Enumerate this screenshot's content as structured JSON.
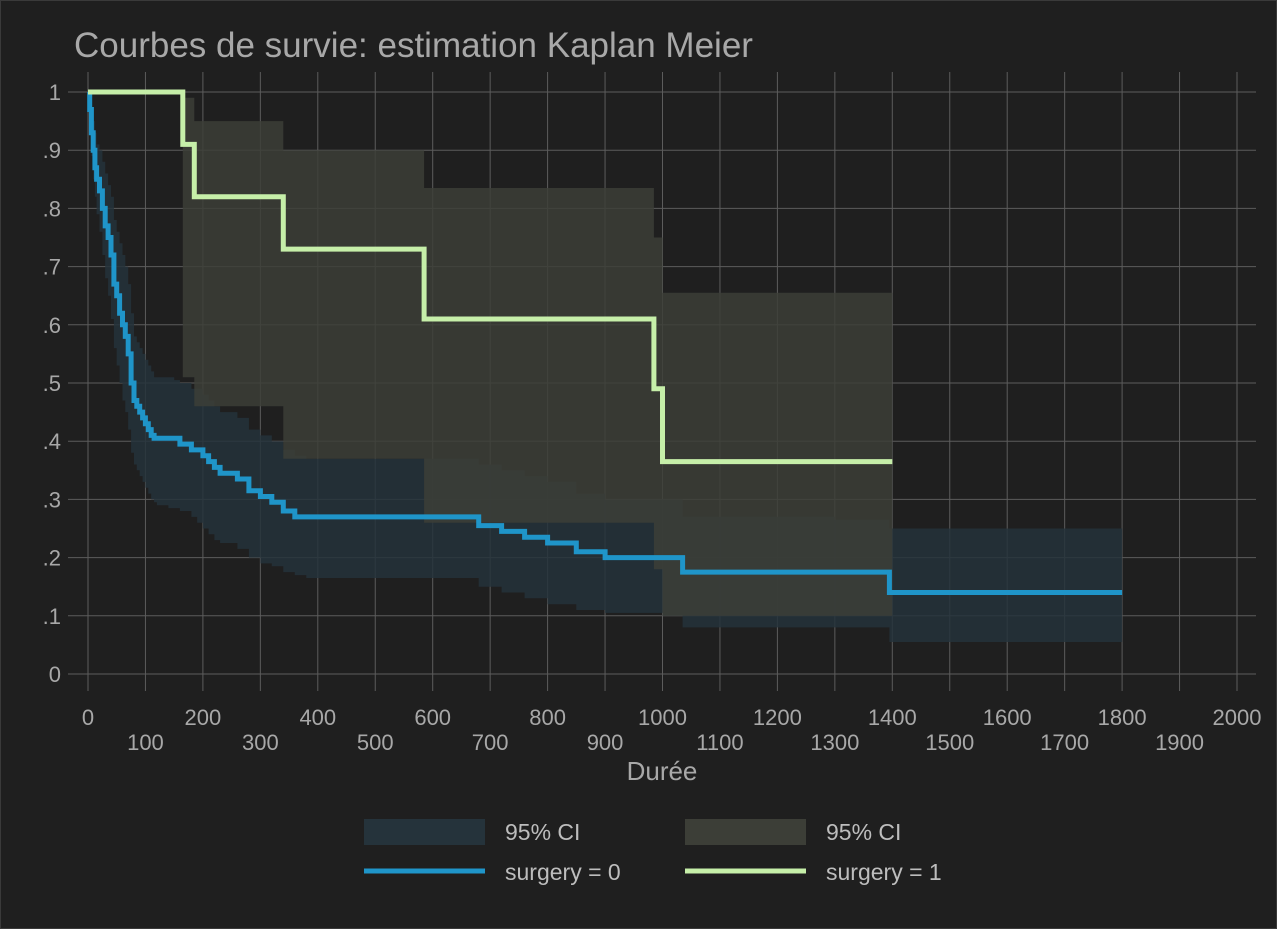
{
  "chart_data": {
    "type": "line",
    "title": "Courbes de survie: estimation Kaplan Meier",
    "xlabel": "Durée",
    "ylabel": "",
    "xlim": [
      0,
      2000
    ],
    "ylim": [
      0,
      1
    ],
    "grid": true,
    "legend_position": "bottom",
    "x_ticks": [
      {
        "value": 0,
        "label": "0"
      },
      {
        "value": 100,
        "label": "100"
      },
      {
        "value": 200,
        "label": "200"
      },
      {
        "value": 300,
        "label": "300"
      },
      {
        "value": 400,
        "label": "400"
      },
      {
        "value": 500,
        "label": "500"
      },
      {
        "value": 600,
        "label": "600"
      },
      {
        "value": 700,
        "label": "700"
      },
      {
        "value": 800,
        "label": "800"
      },
      {
        "value": 900,
        "label": "900"
      },
      {
        "value": 1000,
        "label": "1000"
      },
      {
        "value": 1100,
        "label": "1100"
      },
      {
        "value": 1200,
        "label": "1200"
      },
      {
        "value": 1300,
        "label": "1300"
      },
      {
        "value": 1400,
        "label": "1400"
      },
      {
        "value": 1500,
        "label": "1500"
      },
      {
        "value": 1600,
        "label": "1600"
      },
      {
        "value": 1700,
        "label": "1700"
      },
      {
        "value": 1800,
        "label": "1800"
      },
      {
        "value": 1900,
        "label": "1900"
      },
      {
        "value": 2000,
        "label": "2000"
      }
    ],
    "y_ticks": [
      {
        "value": 0,
        "label": "0"
      },
      {
        "value": 0.1,
        "label": ".1"
      },
      {
        "value": 0.2,
        "label": ".2"
      },
      {
        "value": 0.3,
        "label": ".3"
      },
      {
        "value": 0.4,
        "label": ".4"
      },
      {
        "value": 0.5,
        "label": ".5"
      },
      {
        "value": 0.6,
        "label": ".6"
      },
      {
        "value": 0.7,
        "label": ".7"
      },
      {
        "value": 0.8,
        "label": ".8"
      },
      {
        "value": 0.9,
        "label": ".9"
      },
      {
        "value": 1,
        "label": "1"
      }
    ],
    "series": [
      {
        "name": "surgery = 0",
        "color": "#1f95c9",
        "ci_label": "95% CI",
        "ci_color": "#25333b",
        "x": [
          0,
          3,
          6,
          9,
          12,
          15,
          20,
          25,
          30,
          35,
          40,
          45,
          50,
          55,
          60,
          65,
          70,
          75,
          80,
          85,
          90,
          95,
          100,
          105,
          110,
          115,
          120,
          130,
          140,
          150,
          160,
          180,
          190,
          200,
          210,
          220,
          230,
          260,
          280,
          300,
          320,
          340,
          360,
          380,
          400,
          500,
          600,
          640,
          680,
          720,
          760,
          800,
          850,
          900,
          1000,
          1035,
          1100,
          1200,
          1300,
          1380,
          1395,
          1500,
          1600,
          1700,
          1800
        ],
        "y": [
          1.0,
          0.97,
          0.93,
          0.9,
          0.87,
          0.85,
          0.83,
          0.8,
          0.77,
          0.75,
          0.72,
          0.67,
          0.65,
          0.62,
          0.6,
          0.58,
          0.55,
          0.5,
          0.47,
          0.46,
          0.45,
          0.44,
          0.43,
          0.42,
          0.41,
          0.405,
          0.405,
          0.405,
          0.405,
          0.405,
          0.395,
          0.385,
          0.385,
          0.375,
          0.365,
          0.355,
          0.345,
          0.335,
          0.315,
          0.305,
          0.295,
          0.28,
          0.27,
          0.27,
          0.27,
          0.27,
          0.27,
          0.27,
          0.255,
          0.245,
          0.235,
          0.225,
          0.21,
          0.2,
          0.2,
          0.175,
          0.175,
          0.175,
          0.175,
          0.175,
          0.14,
          0.14,
          0.14,
          0.14,
          0.14
        ],
        "ci_lower": [
          0.99,
          0.93,
          0.89,
          0.85,
          0.82,
          0.79,
          0.76,
          0.72,
          0.68,
          0.65,
          0.61,
          0.56,
          0.53,
          0.5,
          0.47,
          0.45,
          0.42,
          0.38,
          0.36,
          0.35,
          0.34,
          0.33,
          0.32,
          0.31,
          0.3,
          0.295,
          0.29,
          0.29,
          0.285,
          0.285,
          0.28,
          0.27,
          0.26,
          0.25,
          0.24,
          0.23,
          0.225,
          0.215,
          0.2,
          0.19,
          0.185,
          0.175,
          0.17,
          0.165,
          0.165,
          0.165,
          0.165,
          0.165,
          0.15,
          0.14,
          0.13,
          0.12,
          0.11,
          0.105,
          0.1,
          0.08,
          0.08,
          0.08,
          0.08,
          0.08,
          0.055,
          0.055,
          0.055,
          0.055,
          0.055
        ],
        "ci_upper": [
          1.0,
          0.99,
          0.97,
          0.95,
          0.93,
          0.91,
          0.9,
          0.88,
          0.86,
          0.84,
          0.82,
          0.78,
          0.76,
          0.74,
          0.72,
          0.7,
          0.67,
          0.62,
          0.58,
          0.57,
          0.56,
          0.55,
          0.54,
          0.53,
          0.52,
          0.51,
          0.51,
          0.51,
          0.51,
          0.505,
          0.5,
          0.49,
          0.49,
          0.48,
          0.47,
          0.46,
          0.45,
          0.44,
          0.42,
          0.41,
          0.4,
          0.385,
          0.375,
          0.37,
          0.37,
          0.37,
          0.37,
          0.37,
          0.36,
          0.35,
          0.34,
          0.33,
          0.31,
          0.3,
          0.3,
          0.27,
          0.27,
          0.27,
          0.265,
          0.265,
          0.25,
          0.25,
          0.25,
          0.25,
          0.25
        ]
      },
      {
        "name": "surgery = 1",
        "color": "#c6efa9",
        "ci_label": "95% CI",
        "ci_color": "#3c3e37",
        "x": [
          0,
          165,
          185,
          340,
          585,
          985,
          1000,
          1400
        ],
        "y": [
          1.0,
          0.91,
          0.82,
          0.73,
          0.61,
          0.49,
          0.365,
          0.365
        ],
        "ci_lower": [
          1.0,
          0.51,
          0.46,
          0.37,
          0.26,
          0.18,
          0.1,
          0.1
        ],
        "ci_upper": [
          1.0,
          0.99,
          0.95,
          0.9,
          0.835,
          0.75,
          0.655,
          0.655
        ]
      }
    ]
  }
}
